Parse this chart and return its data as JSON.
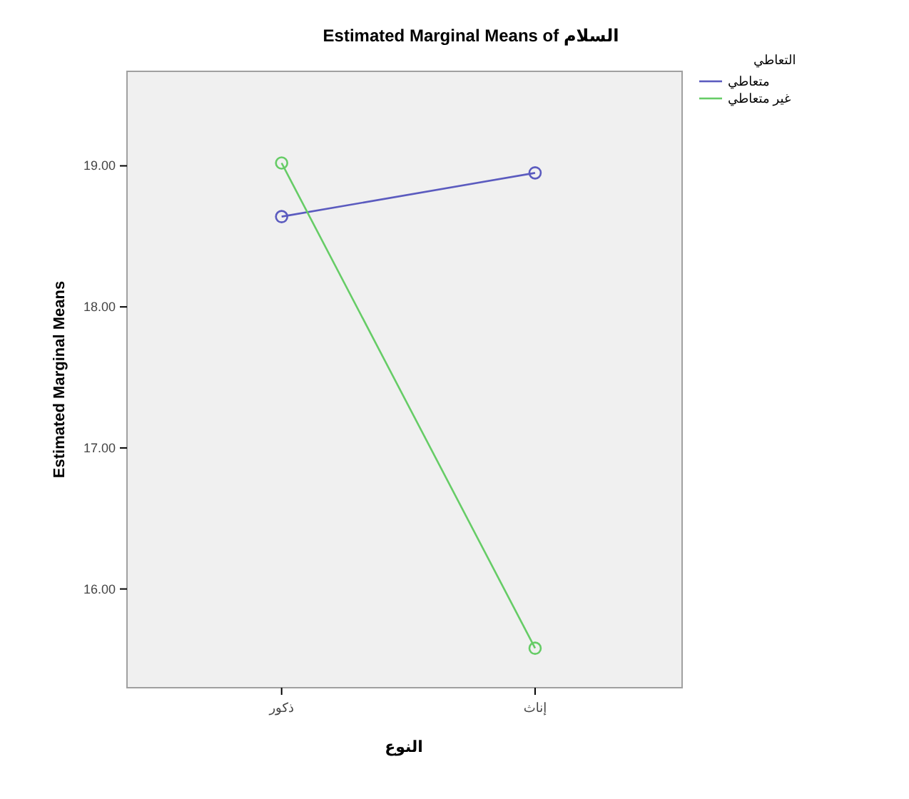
{
  "chart_data": {
    "type": "line",
    "title": "Estimated Marginal Means of السلام",
    "xlabel": "النوع",
    "ylabel": "Estimated Marginal Means",
    "legend_title": "التعاطي",
    "categories": [
      "ذكور",
      "إناث"
    ],
    "series": [
      {
        "name": "متعاطي",
        "color": "#5b5bbf",
        "values": [
          18.64,
          18.95
        ]
      },
      {
        "name": "غير متعاطي",
        "color": "#66cc66",
        "values": [
          19.02,
          15.58
        ]
      }
    ],
    "ylim": [
      15.3,
      19.67
    ],
    "yticks": [
      {
        "value": 16,
        "label": "16.00"
      },
      {
        "value": 17,
        "label": "17.00"
      },
      {
        "value": 18,
        "label": "18.00"
      },
      {
        "value": 19,
        "label": "19.00"
      }
    ],
    "marker": "circle",
    "legend": "top right"
  }
}
